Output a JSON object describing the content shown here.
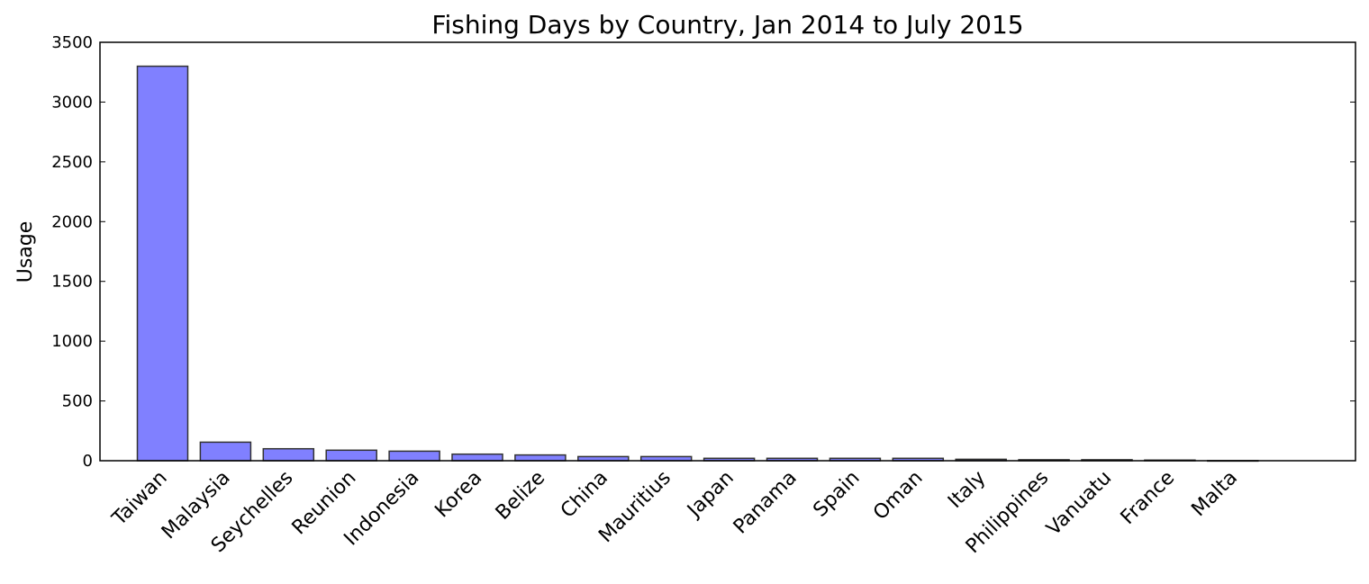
{
  "chart_data": {
    "type": "bar",
    "title": "Fishing Days by Country, Jan 2014 to July 2015",
    "xlabel": "",
    "ylabel": "Usage",
    "categories": [
      "Taiwan",
      "Malaysia",
      "Seychelles",
      "Reunion",
      "Indonesia",
      "Korea",
      "Belize",
      "China",
      "Mauritius",
      "Japan",
      "Panama",
      "Spain",
      "Oman",
      "Italy",
      "Philippines",
      "Vanuatu",
      "France",
      "Malta"
    ],
    "values": [
      3300,
      155,
      100,
      88,
      80,
      55,
      48,
      35,
      35,
      20,
      20,
      20,
      20,
      12,
      8,
      8,
      5,
      1
    ],
    "ylim": [
      0,
      3500
    ],
    "yticks": [
      0,
      500,
      1000,
      1500,
      2000,
      2500,
      3000,
      3500
    ],
    "grid": false,
    "bar_color": "#8080ff"
  }
}
